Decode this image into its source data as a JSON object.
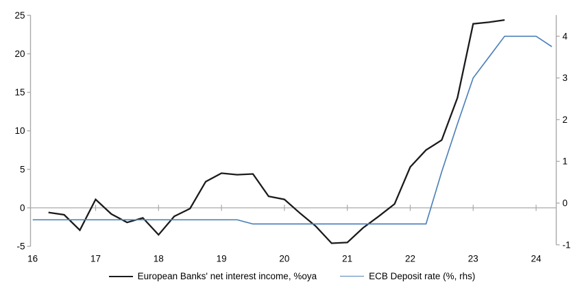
{
  "chart_data": {
    "type": "line",
    "title": "",
    "x_axis": {
      "ticks": [
        16,
        17,
        18,
        19,
        20,
        21,
        22,
        23,
        24
      ],
      "range": [
        16,
        24.35
      ],
      "label": ""
    },
    "left_axis": {
      "ticks": [
        25,
        20,
        15,
        10,
        5,
        0,
        -5
      ],
      "range": [
        -5,
        25
      ],
      "label": ""
    },
    "right_axis": {
      "ticks": [
        4,
        3,
        2,
        1,
        0,
        -1
      ],
      "range": [
        -1,
        4
      ],
      "label": ""
    },
    "grid": "zero-baseline-only",
    "legend_position": "bottom-center",
    "series": [
      {
        "name": "European Banks' net interest income, %oya",
        "axis": "left",
        "color": "#1a1a1a",
        "stroke_width": 2.3,
        "x": [
          16.25,
          16.5,
          16.75,
          17.0,
          17.25,
          17.5,
          17.75,
          18.0,
          18.25,
          18.5,
          18.75,
          19.0,
          19.25,
          19.5,
          19.75,
          20.0,
          20.25,
          20.5,
          20.75,
          21.0,
          21.25,
          21.5,
          21.75,
          22.0,
          22.25,
          22.5,
          22.75,
          23.0,
          23.25,
          23.5
        ],
        "values": [
          -0.6,
          -0.9,
          -2.9,
          1.1,
          -0.8,
          -1.9,
          -1.3,
          -3.5,
          -1.1,
          -0.1,
          3.4,
          4.5,
          4.3,
          4.4,
          1.5,
          1.1,
          -0.7,
          -2.4,
          -4.6,
          -4.5,
          -2.6,
          -1.1,
          0.5,
          5.3,
          7.5,
          8.8,
          14.3,
          23.9,
          24.1,
          24.4
        ]
      },
      {
        "name": "ECB Deposit rate (%, rhs)",
        "axis": "right",
        "color": "#4f82ba",
        "stroke_width": 1.7,
        "x": [
          16.0,
          16.25,
          16.5,
          16.75,
          17.0,
          17.25,
          17.5,
          17.75,
          18.0,
          18.25,
          18.5,
          18.75,
          19.0,
          19.25,
          19.5,
          19.75,
          20.0,
          20.25,
          20.5,
          20.75,
          21.0,
          21.25,
          21.5,
          21.75,
          22.0,
          22.25,
          22.5,
          22.75,
          23.0,
          23.25,
          23.5,
          23.75,
          24.0,
          24.25
        ],
        "values": [
          -0.4,
          -0.4,
          -0.4,
          -0.4,
          -0.4,
          -0.4,
          -0.4,
          -0.4,
          -0.4,
          -0.4,
          -0.4,
          -0.4,
          -0.4,
          -0.4,
          -0.5,
          -0.5,
          -0.5,
          -0.5,
          -0.5,
          -0.5,
          -0.5,
          -0.5,
          -0.5,
          -0.5,
          -0.5,
          -0.5,
          0.75,
          1.9,
          3.0,
          3.5,
          4.0,
          4.0,
          4.0,
          3.75
        ]
      }
    ]
  },
  "colors": {
    "background": "#ffffff",
    "axis_line": "#a8a8a8",
    "tick_text": "#000000",
    "black_line": "#1a1a1a",
    "blue_line": "#4f82ba"
  }
}
